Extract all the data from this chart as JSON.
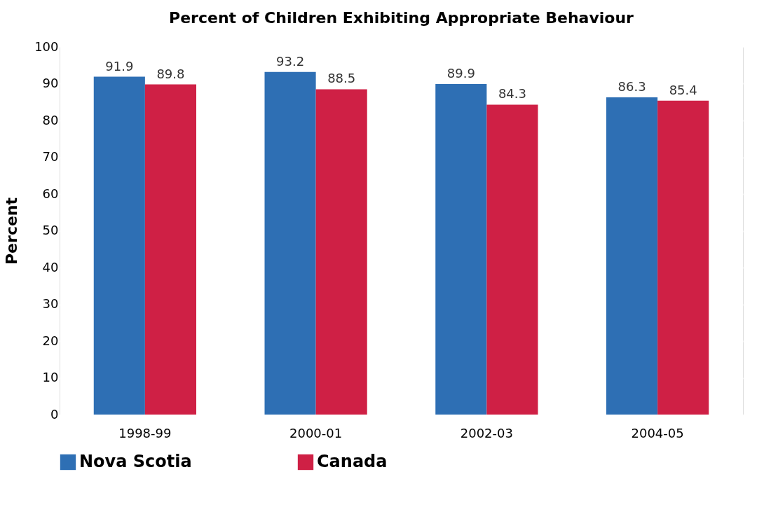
{
  "chart_data": {
    "type": "bar",
    "title": "Percent of Children Exhibiting Appropriate Behaviour",
    "ylabel": "Percent",
    "categories": [
      "1998-99",
      "2000-01",
      "2002-03",
      "2004-05"
    ],
    "series": [
      {
        "name": "Nova Scotia",
        "color": "#2e6fb4",
        "values": [
          91.9,
          93.2,
          89.9,
          86.3
        ]
      },
      {
        "name": "Canada",
        "color": "#cf2045",
        "values": [
          89.8,
          88.5,
          84.3,
          85.4
        ]
      }
    ],
    "ylim": [
      0,
      100
    ],
    "yticks": [
      0,
      10,
      20,
      30,
      40,
      50,
      60,
      70,
      80,
      90,
      100
    ],
    "grid": "y",
    "legend": "bottom",
    "data_labels": true
  }
}
